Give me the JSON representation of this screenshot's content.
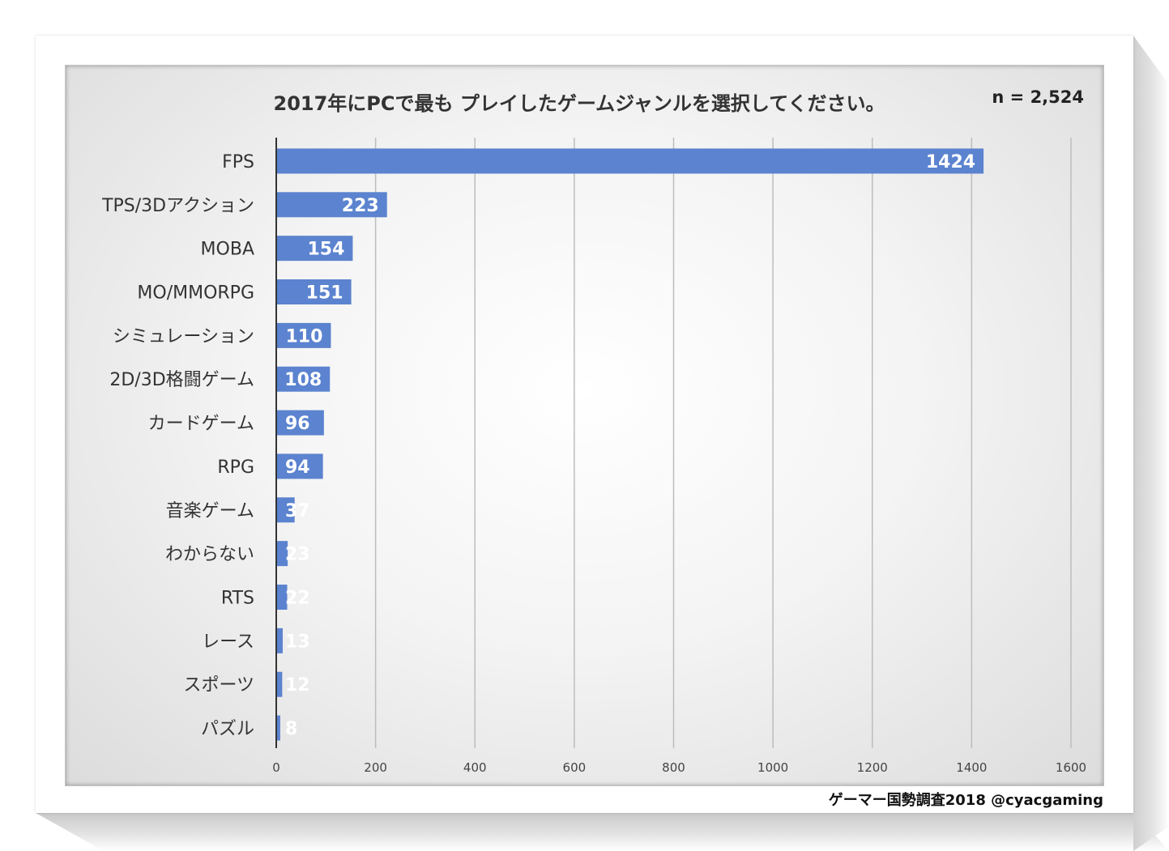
{
  "title": "2017年にPCで最も プレイしたゲームジャンルを選択してください。",
  "sample_size": "n = 2,524",
  "source": "ゲーマー国勢調査2018 @cyacgaming",
  "colors": {
    "bar": "#5b83cf",
    "grid": "#bdbdbd",
    "axis": "#333333",
    "label": "#333333",
    "bar_text": "#ffffff"
  },
  "chart_data": {
    "type": "bar",
    "orientation": "horizontal",
    "title": "2017年にPCで最も プレイしたゲームジャンルを選択してください。",
    "categories": [
      "FPS",
      "TPS/3Dアクション",
      "MOBA",
      "MO/MMORPG",
      "シミュレーション",
      "2D/3D格闘ゲーム",
      "カードゲーム",
      "RPG",
      "音楽ゲーム",
      "わからない",
      "RTS",
      "レース",
      "スポーツ",
      "パズル"
    ],
    "values": [
      1424,
      223,
      154,
      151,
      110,
      108,
      96,
      94,
      37,
      23,
      22,
      13,
      12,
      8
    ],
    "xlim": [
      0,
      1600
    ],
    "x_ticks": [
      0,
      200,
      400,
      600,
      800,
      1000,
      1200,
      1400,
      1600
    ],
    "grid": "vertical",
    "data_labels": true
  }
}
